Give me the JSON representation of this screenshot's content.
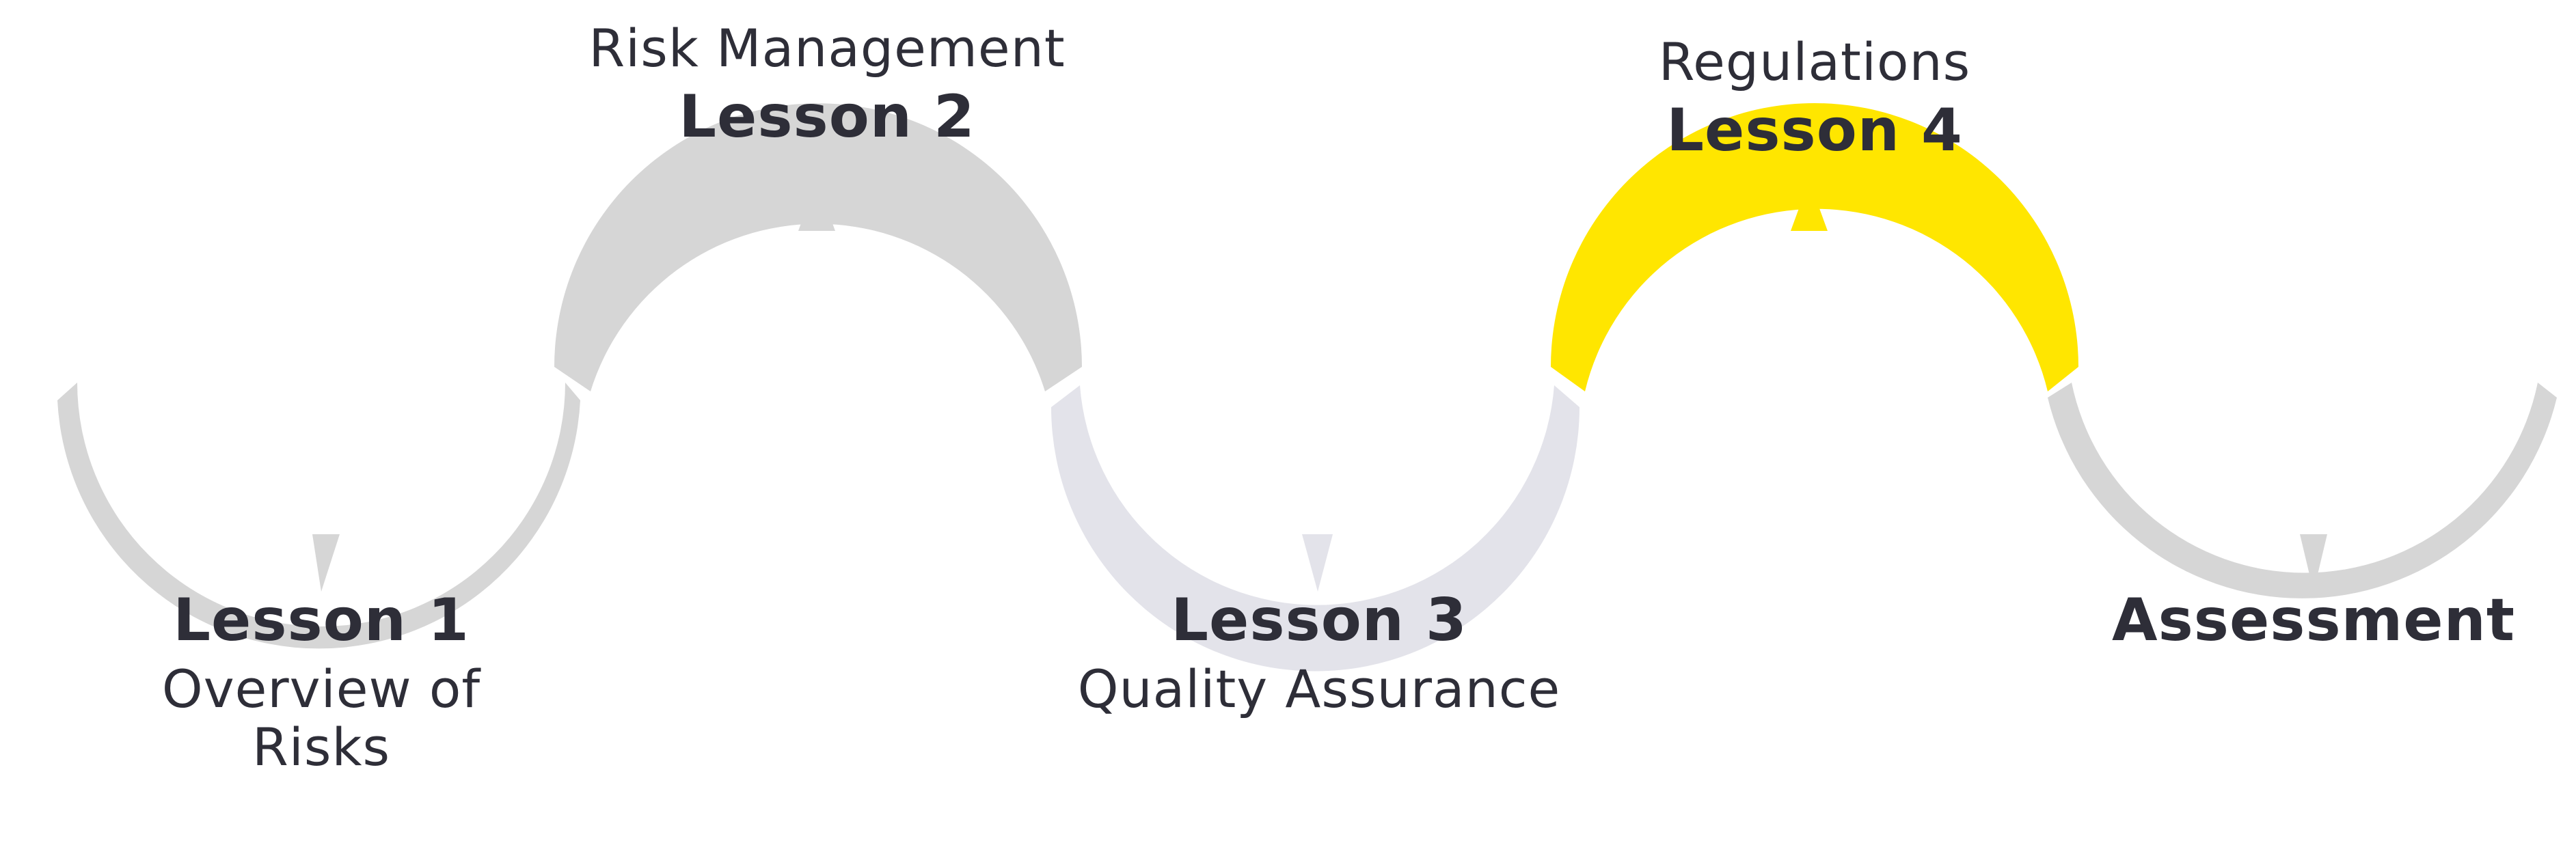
{
  "colors": {
    "default_track": "#d6d6d6",
    "visited_track": "#e3e3ea",
    "active_track": "#ffe600",
    "text": "#2e2e38",
    "background": "#ffffff"
  },
  "lessons": [
    {
      "title": "Lesson 1",
      "subtitle": "Overview of Risks",
      "state": "default"
    },
    {
      "title": "Lesson 2",
      "subtitle": "Risk Management",
      "state": "default"
    },
    {
      "title": "Lesson 3",
      "subtitle": "Quality Assurance",
      "state": "visited"
    },
    {
      "title": "Lesson 4",
      "subtitle": "Regulations",
      "state": "active"
    },
    {
      "title": "Assessment",
      "subtitle": "",
      "state": "default"
    }
  ]
}
